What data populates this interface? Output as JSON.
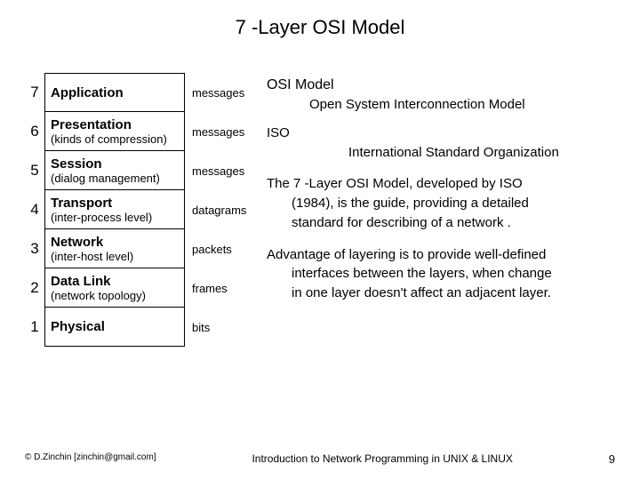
{
  "title": "7 -Layer OSI Model",
  "layers": [
    {
      "num": "7",
      "name": "Application",
      "sub": "",
      "pdu": "messages"
    },
    {
      "num": "6",
      "name": "Presentation",
      "sub": "(kinds of compression)",
      "pdu": "messages"
    },
    {
      "num": "5",
      "name": "Session",
      "sub": "(dialog management)",
      "pdu": "messages"
    },
    {
      "num": "4",
      "name": "Transport",
      "sub": "(inter-process level)",
      "pdu": "datagrams"
    },
    {
      "num": "3",
      "name": "Network",
      "sub": "(inter-host level)",
      "pdu": "packets"
    },
    {
      "num": "2",
      "name": "Data Link",
      "sub": "(network topology)",
      "pdu": "frames"
    },
    {
      "num": "1",
      "name": "Physical",
      "sub": "",
      "pdu": "bits"
    }
  ],
  "right": {
    "osi_hdr": "OSI Model",
    "osi_sub": "Open System Interconnection Model",
    "iso_hdr": "ISO",
    "iso_sub": "International Standard Organization",
    "para1_l1": "The 7 -Layer OSI Model, developed by ISO",
    "para1_l2": "(1984), is the guide, providing a detailed",
    "para1_l3": "standard for describing of a network .",
    "para2_l1": "Advantage of layering is to provide well-defined",
    "para2_l2": "interfaces between the layers, when change",
    "para2_l3": "in one layer doesn't affect an adjacent layer."
  },
  "footer": {
    "left": "© D.Zinchin [zinchin@gmail.com]",
    "center": "Introduction to Network Programming in UNIX & LINUX",
    "page": "9"
  },
  "colors": {
    "background": "#ffffff",
    "text": "#000000",
    "border": "#000000"
  }
}
